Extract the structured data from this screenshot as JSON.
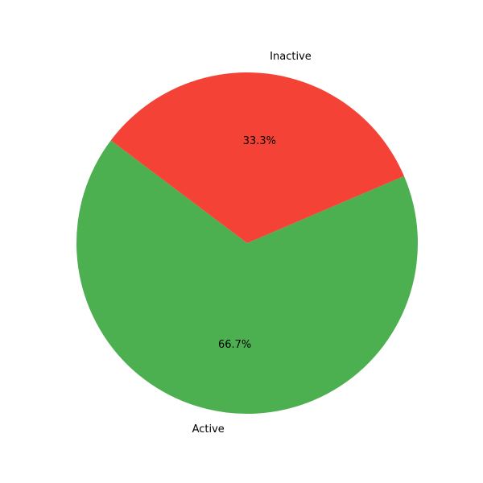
{
  "chart_data": {
    "type": "pie",
    "categories": [
      "Active",
      "Inactive"
    ],
    "values": [
      66.7,
      33.3
    ],
    "percent_labels": [
      "66.7%",
      "33.3%"
    ],
    "colors": [
      "#4caf50",
      "#f44336"
    ],
    "title": "",
    "legend": "none"
  }
}
